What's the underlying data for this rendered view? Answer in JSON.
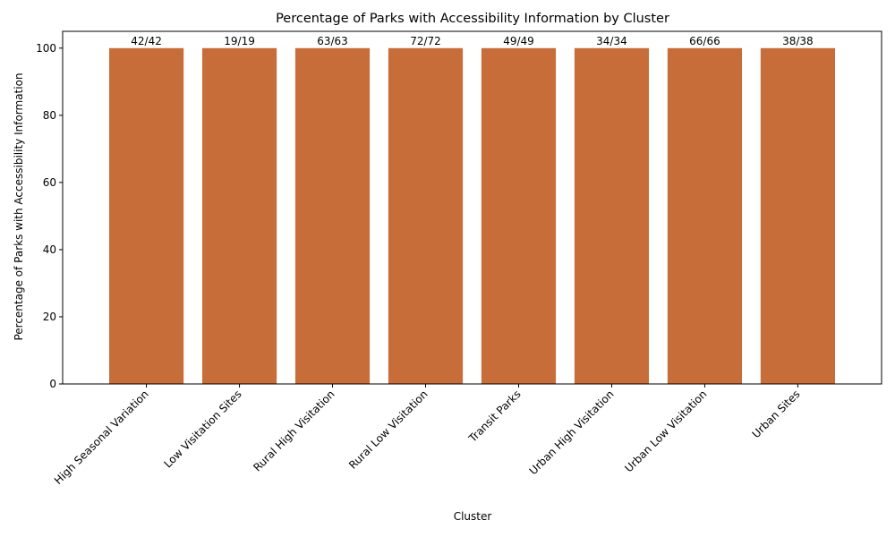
{
  "chart_data": {
    "type": "bar",
    "title": "Percentage of Parks with Accessibility Information by Cluster",
    "xlabel": "Cluster",
    "ylabel": "Percentage of Parks with Accessibility Information",
    "categories": [
      "High Seasonal Variation",
      "Low Visitation Sites",
      "Rural High Visitation",
      "Rural Low Visitation",
      "Transit Parks",
      "Urban High Visitation",
      "Urban Low Visitation",
      "Urban Sites"
    ],
    "values": [
      100,
      100,
      100,
      100,
      100,
      100,
      100,
      100
    ],
    "bar_labels": [
      "42/42",
      "19/19",
      "63/63",
      "72/72",
      "49/49",
      "34/34",
      "66/66",
      "38/38"
    ],
    "ylim": [
      0,
      105
    ],
    "yticks": [
      0,
      20,
      40,
      60,
      80,
      100
    ],
    "grid": false,
    "bar_color": "#c76d3a"
  }
}
